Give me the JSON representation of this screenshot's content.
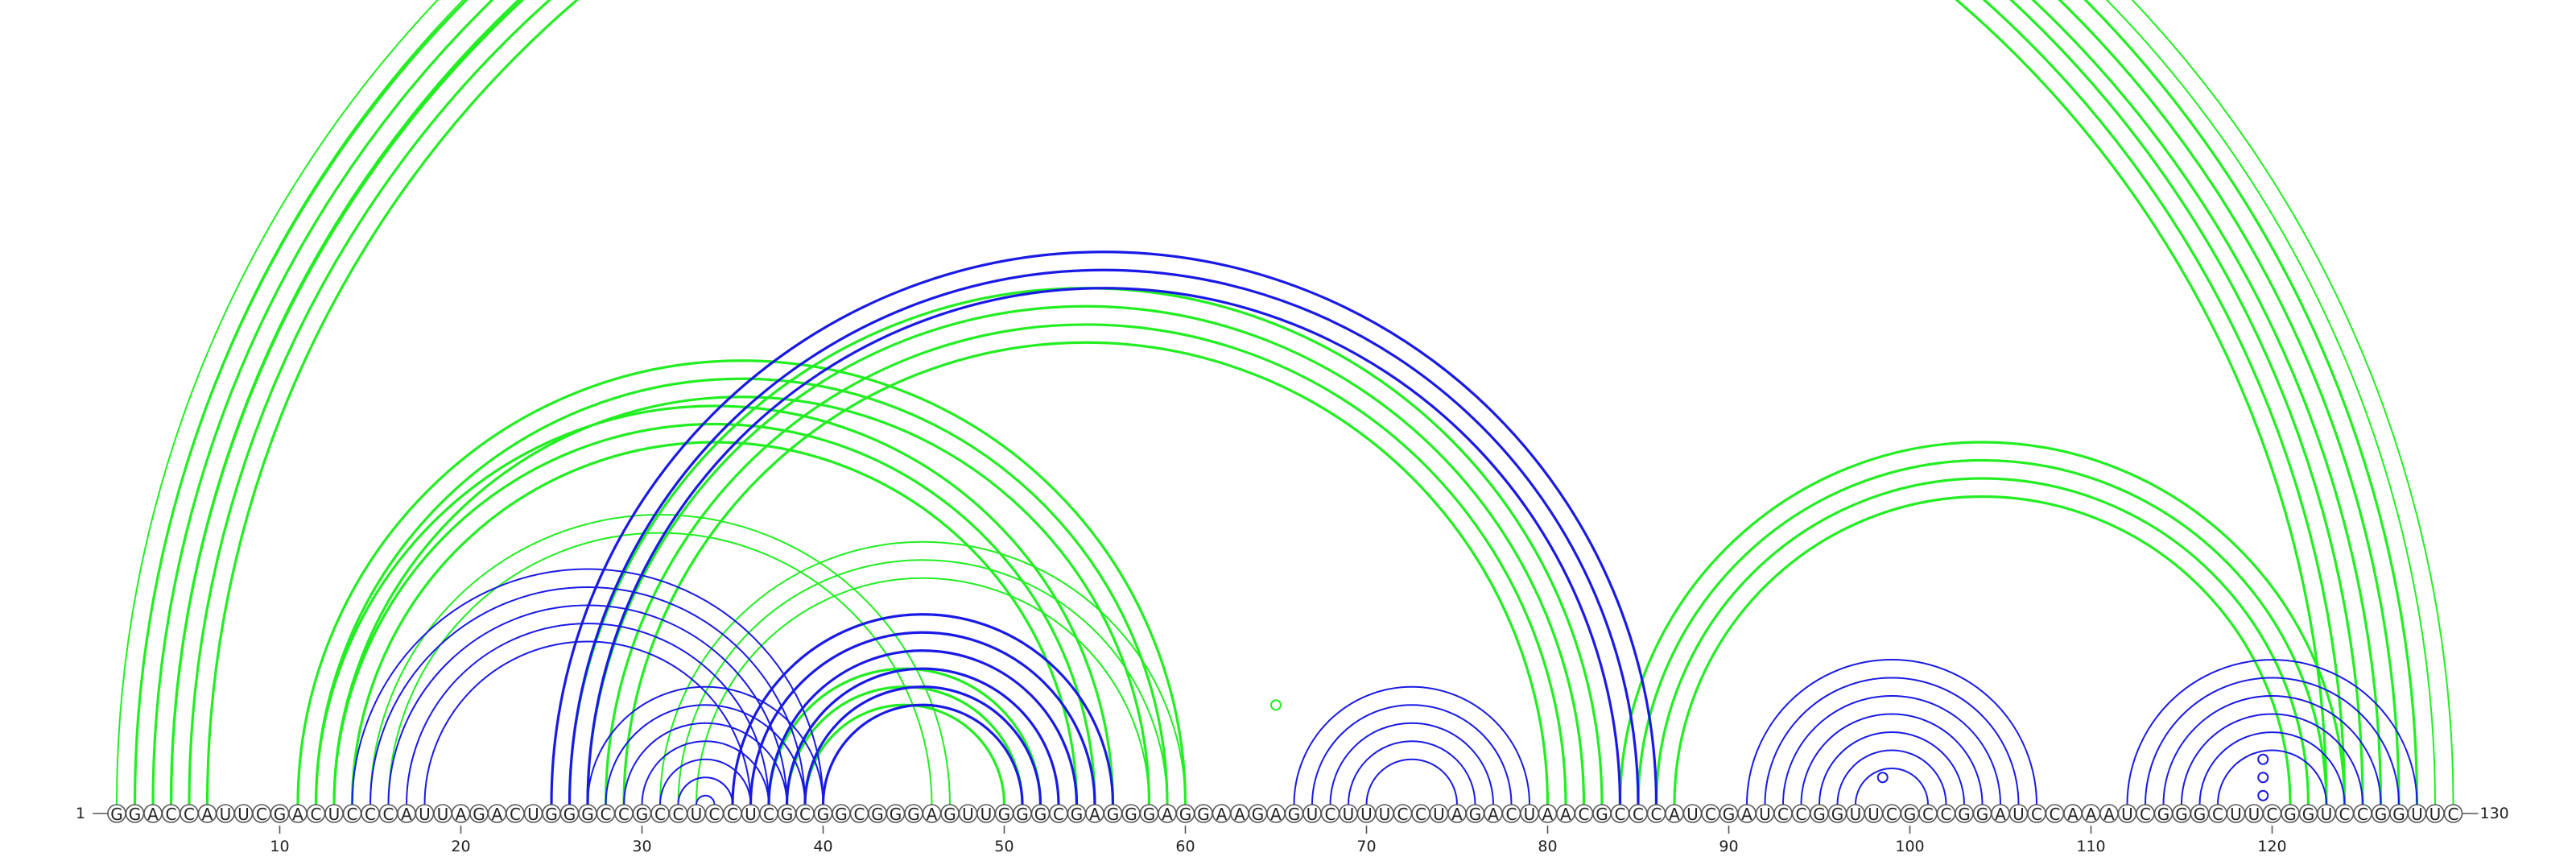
{
  "diagram": {
    "type": "rna-arc-diagram",
    "length": 130,
    "start_label": "1",
    "end_label": "130",
    "sequence": "GGACCAUUCGACUCCCAUUAGACUGGGCCGCCUCCUCGCGGCGGGAGUUGGGCGAGGGAGGAAGAGUCUUUCCUAGACUAACGCCCAUCGAUCCGGUUCGCCGGAUCCAAAUCGGGCUUCGGUCCGGUUC",
    "tick_positions": [
      10,
      20,
      30,
      40,
      50,
      60,
      70,
      80,
      90,
      100,
      110,
      120
    ],
    "tick_labels": [
      "10",
      "20",
      "30",
      "40",
      "50",
      "60",
      "70",
      "80",
      "90",
      "100",
      "110",
      "120"
    ],
    "colors": {
      "green": "#22ee22",
      "blue": "#1a1ae6",
      "circle_stroke": "#555555"
    },
    "arc_helices": [
      {
        "color": "green",
        "i": 1,
        "j": 130,
        "n": 2,
        "dir": 1,
        "strength": "thin"
      },
      {
        "color": "green",
        "i": 2,
        "j": 128,
        "n": 3,
        "dir": 1,
        "strength": "thick"
      },
      {
        "color": "green",
        "i": 4,
        "j": 125,
        "n": 3,
        "dir": 1,
        "strength": "thick"
      },
      {
        "color": "green",
        "i": 11,
        "j": 60,
        "n": 3,
        "dir": 1,
        "strength": "thick"
      },
      {
        "color": "green",
        "i": 12,
        "j": 56,
        "n": 3,
        "dir": 1,
        "strength": "thick"
      },
      {
        "color": "green",
        "i": 15,
        "j": 47,
        "n": 2,
        "dir": 1,
        "strength": "thin"
      },
      {
        "color": "green",
        "i": 26,
        "j": 83,
        "n": 4,
        "dir": 1,
        "strength": "thick"
      },
      {
        "color": "green",
        "i": 31,
        "j": 60,
        "n": 3,
        "dir": 1,
        "strength": "thin"
      },
      {
        "color": "green",
        "i": 37,
        "j": 52,
        "n": 3,
        "dir": 1,
        "strength": "thick"
      },
      {
        "color": "green",
        "i": 84,
        "j": 124,
        "n": 4,
        "dir": 1,
        "strength": "thick"
      },
      {
        "color": "blue",
        "i": 14,
        "j": 40,
        "n": 5,
        "dir": 1,
        "strength": "thin"
      },
      {
        "color": "blue",
        "i": 25,
        "j": 86,
        "n": 3,
        "dir": 1,
        "strength": "thick"
      },
      {
        "color": "blue",
        "i": 27,
        "j": 40,
        "n": 7,
        "dir": 1,
        "strength": "thin"
      },
      {
        "color": "blue",
        "i": 35,
        "j": 56,
        "n": 6,
        "dir": 1,
        "strength": "thick"
      },
      {
        "color": "blue",
        "i": 66,
        "j": 79,
        "n": 5,
        "dir": 1,
        "strength": "thin"
      },
      {
        "color": "blue",
        "i": 91,
        "j": 107,
        "n": 7,
        "dir": 1,
        "strength": "thin"
      },
      {
        "color": "blue",
        "i": 112,
        "j": 128,
        "n": 6,
        "dir": 1,
        "strength": "thin"
      }
    ],
    "arc_markers": [
      {
        "color": "green",
        "i": 59.5,
        "j": 70.5,
        "vertex": "top"
      },
      {
        "color": "blue",
        "i": 97,
        "j": 100,
        "vertex": "top"
      },
      {
        "color": "blue",
        "i": 117,
        "j": 122,
        "vertex": "top"
      },
      {
        "color": "blue",
        "i": 118,
        "j": 121,
        "vertex": "top"
      },
      {
        "color": "blue",
        "i": 119,
        "j": 120,
        "vertex": "top"
      }
    ]
  }
}
